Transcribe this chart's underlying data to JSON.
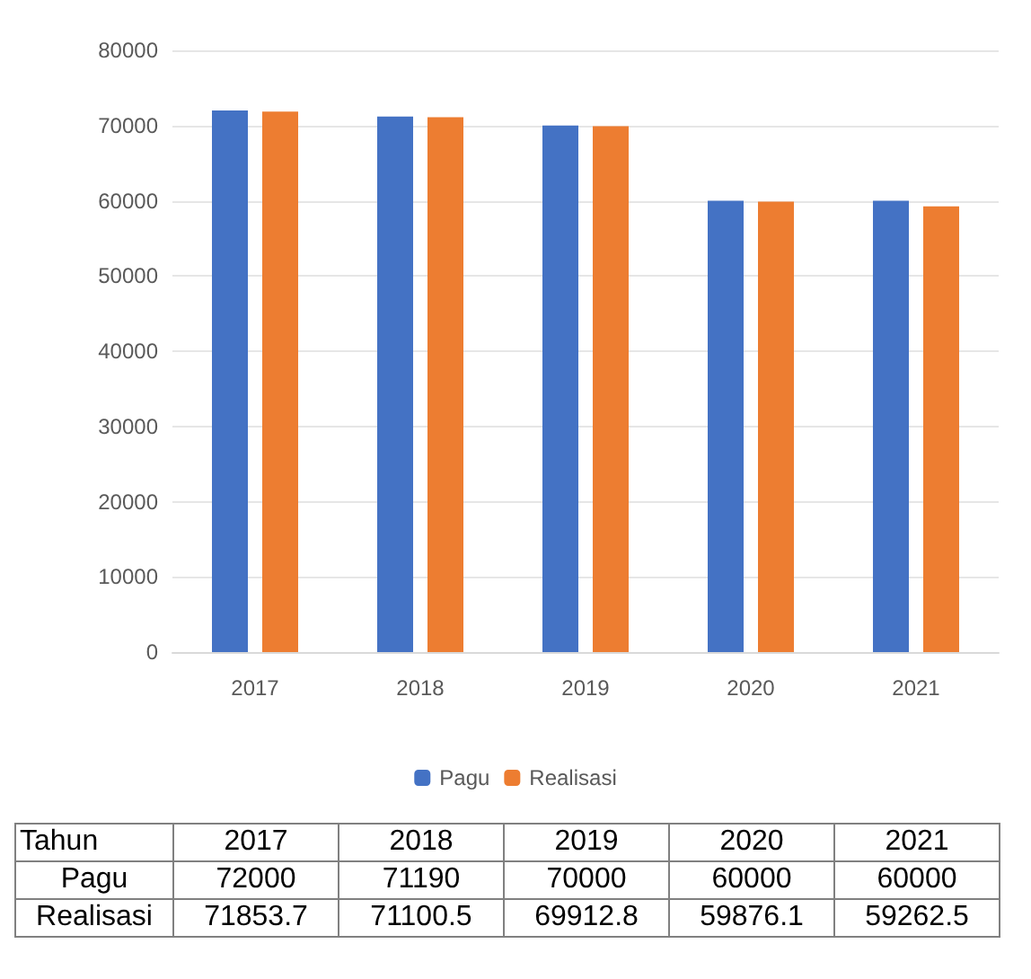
{
  "chart_data": {
    "type": "bar",
    "xlabel": "Tahun",
    "categories": [
      "2017",
      "2018",
      "2019",
      "2020",
      "2021"
    ],
    "series": [
      {
        "name": "Pagu",
        "color": "#4472c4",
        "values": [
          72000,
          71190,
          70000,
          60000,
          60000
        ],
        "value_labels": [
          "72000",
          "71190",
          "70000",
          "60000",
          "60000"
        ]
      },
      {
        "name": "Realisasi",
        "color": "#ed7d31",
        "values": [
          71853.7,
          71100.5,
          69912.8,
          59876.1,
          59262.5
        ],
        "value_labels": [
          "71853.7",
          "71100.5",
          "69912.8",
          "59876.1",
          "59262.5"
        ]
      }
    ],
    "ylim": [
      0,
      80000
    ],
    "yticks": [
      0,
      10000,
      20000,
      30000,
      40000,
      50000,
      60000,
      70000,
      80000
    ],
    "grid": "y",
    "legend": "bottom"
  }
}
